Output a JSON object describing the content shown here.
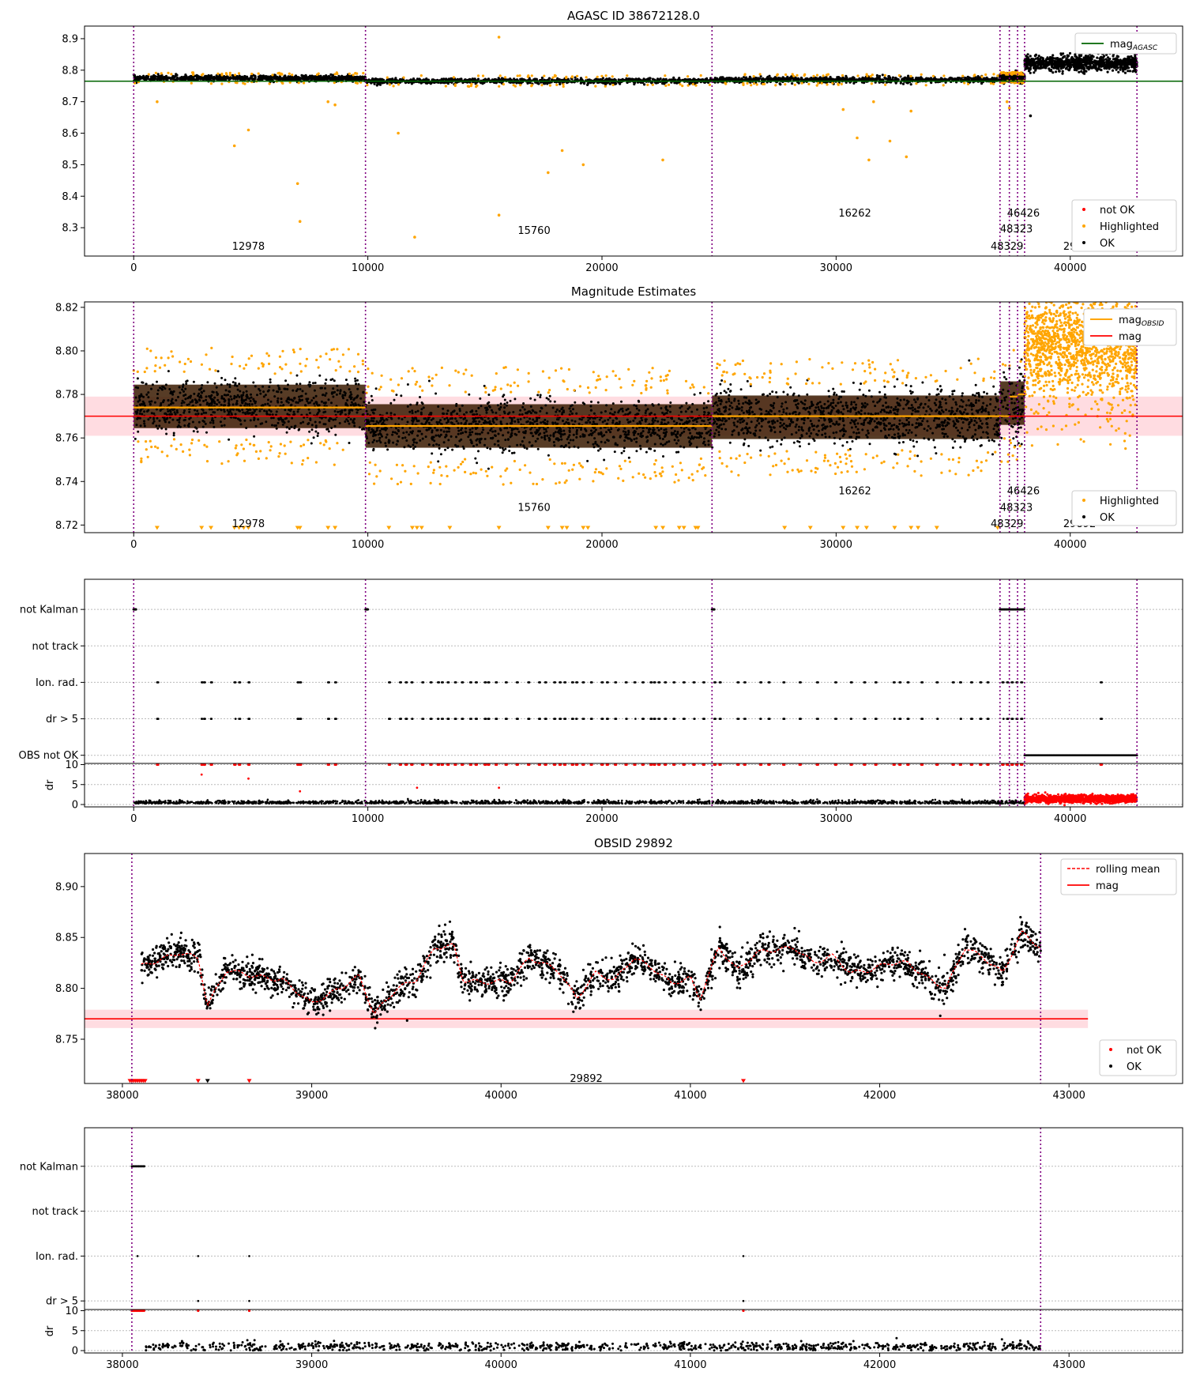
{
  "chart_data": [
    {
      "type": "scatter",
      "title": "AGASC ID 38672128.0",
      "xlim": [
        -2100,
        44800
      ],
      "ylim": [
        8.21,
        8.94
      ],
      "xticks": [
        0,
        10000,
        20000,
        30000,
        40000
      ],
      "xtick_labels": [
        "0",
        "10000",
        "20000",
        "30000",
        "40000"
      ],
      "yticks": [
        8.3,
        8.4,
        8.5,
        8.6,
        8.7,
        8.8,
        8.9
      ],
      "ytick_labels": [
        "8.3",
        "8.4",
        "8.5",
        "8.6",
        "8.7",
        "8.8",
        "8.9"
      ],
      "mag_agasc": 8.765,
      "legend_upper": [
        "mag_AGASC"
      ],
      "legend_lower": [
        "not OK",
        "Highlighted",
        "OK"
      ],
      "obsid_labels": [
        {
          "text": "12978",
          "x": 4900,
          "y": 8.24
        },
        {
          "text": "15760",
          "x": 17100,
          "y": 8.29
        },
        {
          "text": "16262",
          "x": 30800,
          "y": 8.345
        },
        {
          "text": "46426",
          "x": 38000,
          "y": 8.345
        },
        {
          "text": "48323",
          "x": 37700,
          "y": 8.295
        },
        {
          "text": "48329",
          "x": 37300,
          "y": 8.24
        },
        {
          "text": "29892",
          "x": 40400,
          "y": 8.24
        }
      ],
      "obsid_boundaries": [
        0,
        9900,
        24700,
        37000,
        37400,
        37750,
        38050,
        42850
      ],
      "highlighted_outliers": [
        [
          1000,
          8.7
        ],
        [
          4300,
          8.56
        ],
        [
          4900,
          8.61
        ],
        [
          7000,
          8.44
        ],
        [
          7100,
          8.32
        ],
        [
          8300,
          8.7
        ],
        [
          8600,
          8.69
        ],
        [
          11300,
          8.6
        ],
        [
          12000,
          8.27
        ],
        [
          15600,
          8.905
        ],
        [
          15600,
          8.34
        ],
        [
          17700,
          8.475
        ],
        [
          18300,
          8.545
        ],
        [
          19200,
          8.5
        ],
        [
          22600,
          8.515
        ],
        [
          30300,
          8.675
        ],
        [
          30900,
          8.585
        ],
        [
          31400,
          8.515
        ],
        [
          31600,
          8.7
        ],
        [
          32300,
          8.575
        ],
        [
          33000,
          8.525
        ],
        [
          33200,
          8.67
        ],
        [
          37300,
          8.7
        ],
        [
          37400,
          8.68
        ]
      ],
      "ok_outliers": [
        [
          38300,
          8.655
        ]
      ]
    },
    {
      "type": "scatter",
      "title": "Magnitude Estimates",
      "xlim": [
        -2100,
        44800
      ],
      "ylim": [
        8.7165,
        8.8225
      ],
      "xticks": [
        0,
        10000,
        20000,
        30000,
        40000
      ],
      "xtick_labels": [
        "0",
        "10000",
        "20000",
        "30000",
        "40000"
      ],
      "yticks": [
        8.72,
        8.74,
        8.76,
        8.78,
        8.8,
        8.82
      ],
      "ytick_labels": [
        "8.72",
        "8.74",
        "8.76",
        "8.78",
        "8.80",
        "8.82"
      ],
      "mag": 8.77,
      "mag_band": [
        8.761,
        8.779
      ],
      "mag_obsid_segments": [
        {
          "x0": 0,
          "x1": 9900,
          "y": 8.774
        },
        {
          "x0": 9900,
          "x1": 24700,
          "y": 8.7655
        },
        {
          "x0": 24700,
          "x1": 37000,
          "y": 8.77
        },
        {
          "x0": 37000,
          "x1": 37400,
          "y": 8.77
        },
        {
          "x0": 37400,
          "x1": 37750,
          "y": 8.779
        },
        {
          "x0": 37750,
          "x1": 38050,
          "y": 8.78
        }
      ],
      "legend_upper": [
        "mag_OBSID",
        "mag"
      ],
      "legend_lower": [
        "Highlighted",
        "OK"
      ],
      "obsid_labels": [
        {
          "text": "12978",
          "x": 4900,
          "y": 8.7205
        },
        {
          "text": "15760",
          "x": 17100,
          "y": 8.728
        },
        {
          "text": "16262",
          "x": 30800,
          "y": 8.7355
        },
        {
          "text": "46426",
          "x": 38000,
          "y": 8.7355
        },
        {
          "text": "48323",
          "x": 37700,
          "y": 8.728
        },
        {
          "text": "48329",
          "x": 37300,
          "y": 8.7205
        },
        {
          "text": "29892",
          "x": 40400,
          "y": 8.7205
        }
      ],
      "obsid_boundaries": [
        0,
        9900,
        24700,
        37000,
        37400,
        37750,
        38050,
        42850
      ]
    },
    {
      "type": "scatter",
      "title": "",
      "xlim": [
        -2100,
        44800
      ],
      "categories": [
        "not Kalman",
        "not track",
        "Ion. rad.",
        "dr > 5",
        "OBS not OK"
      ],
      "dr_yticks": [
        0,
        5,
        10
      ],
      "dr_ytick_labels": [
        "0",
        "5",
        "10"
      ],
      "dr_ylabel": "dr",
      "xticks": [
        0,
        10000,
        20000,
        30000,
        40000
      ],
      "xtick_labels": [
        "0",
        "10000",
        "20000",
        "30000",
        "40000"
      ],
      "obsid_boundaries": [
        0,
        9900,
        24700,
        37000,
        37400,
        37750,
        38050,
        42850
      ]
    },
    {
      "type": "scatter",
      "title": "OBSID 29892",
      "xlim": [
        37800,
        43600
      ],
      "ylim": [
        8.7065,
        8.9325
      ],
      "xticks": [
        38000,
        39000,
        40000,
        41000,
        42000,
        43000
      ],
      "xtick_labels": [
        "38000",
        "39000",
        "40000",
        "41000",
        "42000",
        "43000"
      ],
      "yticks": [
        8.75,
        8.8,
        8.85,
        8.9
      ],
      "ytick_labels": [
        "8.75",
        "8.80",
        "8.85",
        "8.90"
      ],
      "mag": 8.77,
      "mag_band": [
        8.761,
        8.779
      ],
      "legend_upper": [
        "rolling mean",
        "mag"
      ],
      "legend_lower": [
        "not OK",
        "OK"
      ],
      "obsid_label": {
        "text": "29892",
        "x": 40450,
        "y": 8.711
      },
      "obsid_boundaries": [
        38050,
        42850
      ],
      "rolling_mean_x": [
        38100,
        38200,
        38300,
        38400,
        38450,
        38550,
        38700,
        38850,
        39000,
        39150,
        39250,
        39330,
        39450,
        39550,
        39650,
        39750,
        39800,
        39900,
        40050,
        40150,
        40300,
        40400,
        40500,
        40600,
        40700,
        40800,
        40900,
        41000,
        41050,
        41150,
        41250,
        41350,
        41450,
        41550,
        41650,
        41750,
        41850,
        41950,
        42050,
        42150,
        42250,
        42350,
        42450,
        42550,
        42650,
        42750,
        42850
      ],
      "rolling_mean_y": [
        8.822,
        8.828,
        8.835,
        8.83,
        8.783,
        8.818,
        8.812,
        8.808,
        8.785,
        8.8,
        8.812,
        8.775,
        8.8,
        8.808,
        8.84,
        8.842,
        8.808,
        8.806,
        8.807,
        8.83,
        8.818,
        8.79,
        8.815,
        8.808,
        8.83,
        8.82,
        8.805,
        8.81,
        8.79,
        8.84,
        8.818,
        8.835,
        8.838,
        8.84,
        8.825,
        8.832,
        8.815,
        8.818,
        8.825,
        8.825,
        8.81,
        8.8,
        8.84,
        8.83,
        8.815,
        8.855,
        8.84
      ]
    },
    {
      "type": "scatter",
      "title": "",
      "xlim": [
        37800,
        43600
      ],
      "categories": [
        "not Kalman",
        "not track",
        "Ion. rad.",
        "dr > 5"
      ],
      "dr_yticks": [
        0,
        5,
        10
      ],
      "dr_ytick_labels": [
        "0",
        "5",
        "10"
      ],
      "dr_ylabel": "dr",
      "xticks": [
        38000,
        39000,
        40000,
        41000,
        42000,
        43000
      ],
      "xtick_labels": [
        "38000",
        "39000",
        "40000",
        "41000",
        "42000",
        "43000"
      ],
      "obsid_boundaries": [
        38050,
        42850
      ]
    }
  ]
}
